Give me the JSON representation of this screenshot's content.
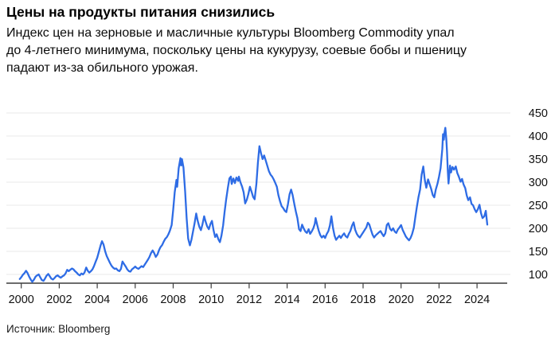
{
  "header": {
    "title": "Цены на продукты питания снизились",
    "subtitle": "Индекс цен на зерновые и масличные культуры Bloomberg Commodity упал до 4-летнего минимума, поскольку цены на кукурузу, соевые бобы и пшеницу падают из-за обильного урожая.",
    "subtitle_lines": [
      "Индекс цен на зерновые и масличные культуры Bloomberg Commodity упал",
      "до 4-летнего минимума, поскольку цены на кукурузу, соевые бобы и пшеницу",
      "падают из-за обильного урожая."
    ]
  },
  "footer": {
    "source_label": "Источник: Bloomberg"
  },
  "chart_data": {
    "type": "line",
    "title": "Цены на продукты питания снизились",
    "xlabel": "",
    "ylabel": "",
    "x_ticks": [
      2000,
      2002,
      2004,
      2006,
      2008,
      2010,
      2012,
      2014,
      2016,
      2018,
      2020,
      2022,
      2024
    ],
    "y_ticks": [
      100,
      150,
      200,
      250,
      300,
      350,
      400,
      450
    ],
    "x_range": [
      1999.9,
      2025.3
    ],
    "ylim": [
      80,
      460
    ],
    "y_axis_side": "right",
    "grid": true,
    "legend": "none",
    "line_color": "#2e6ce5",
    "grid_color": "#e8e8e8",
    "axis_color": "#3c3c3c",
    "label_color": "#111111",
    "points": [
      [
        1999.92,
        90
      ],
      [
        2000,
        94
      ],
      [
        2000.08,
        99
      ],
      [
        2000.17,
        103
      ],
      [
        2000.25,
        108
      ],
      [
        2000.33,
        103
      ],
      [
        2000.42,
        95
      ],
      [
        2000.5,
        89
      ],
      [
        2000.58,
        84
      ],
      [
        2000.67,
        89
      ],
      [
        2000.75,
        95
      ],
      [
        2000.83,
        98
      ],
      [
        2000.92,
        100
      ],
      [
        2001,
        94
      ],
      [
        2001.08,
        88
      ],
      [
        2001.17,
        86
      ],
      [
        2001.25,
        91
      ],
      [
        2001.33,
        97
      ],
      [
        2001.42,
        101
      ],
      [
        2001.5,
        96
      ],
      [
        2001.58,
        91
      ],
      [
        2001.67,
        89
      ],
      [
        2001.75,
        92
      ],
      [
        2001.83,
        96
      ],
      [
        2001.92,
        98
      ],
      [
        2002,
        95
      ],
      [
        2002.08,
        93
      ],
      [
        2002.17,
        96
      ],
      [
        2002.25,
        98
      ],
      [
        2002.33,
        102
      ],
      [
        2002.42,
        110
      ],
      [
        2002.5,
        107
      ],
      [
        2002.58,
        110
      ],
      [
        2002.67,
        113
      ],
      [
        2002.75,
        111
      ],
      [
        2002.83,
        107
      ],
      [
        2002.92,
        104
      ],
      [
        2003,
        100
      ],
      [
        2003.08,
        98
      ],
      [
        2003.17,
        102
      ],
      [
        2003.25,
        100
      ],
      [
        2003.33,
        104
      ],
      [
        2003.42,
        115
      ],
      [
        2003.5,
        108
      ],
      [
        2003.58,
        104
      ],
      [
        2003.67,
        107
      ],
      [
        2003.75,
        111
      ],
      [
        2003.83,
        118
      ],
      [
        2003.92,
        128
      ],
      [
        2004,
        136
      ],
      [
        2004.08,
        148
      ],
      [
        2004.17,
        162
      ],
      [
        2004.25,
        172
      ],
      [
        2004.33,
        165
      ],
      [
        2004.42,
        150
      ],
      [
        2004.5,
        140
      ],
      [
        2004.58,
        133
      ],
      [
        2004.67,
        125
      ],
      [
        2004.75,
        119
      ],
      [
        2004.83,
        115
      ],
      [
        2004.92,
        112
      ],
      [
        2005,
        113
      ],
      [
        2005.08,
        109
      ],
      [
        2005.17,
        107
      ],
      [
        2005.25,
        112
      ],
      [
        2005.33,
        128
      ],
      [
        2005.42,
        122
      ],
      [
        2005.5,
        117
      ],
      [
        2005.58,
        111
      ],
      [
        2005.67,
        107
      ],
      [
        2005.75,
        106
      ],
      [
        2005.83,
        111
      ],
      [
        2005.92,
        114
      ],
      [
        2006,
        117
      ],
      [
        2006.08,
        114
      ],
      [
        2006.17,
        112
      ],
      [
        2006.25,
        115
      ],
      [
        2006.33,
        118
      ],
      [
        2006.42,
        116
      ],
      [
        2006.5,
        121
      ],
      [
        2006.58,
        126
      ],
      [
        2006.67,
        132
      ],
      [
        2006.75,
        138
      ],
      [
        2006.83,
        146
      ],
      [
        2006.92,
        152
      ],
      [
        2007,
        146
      ],
      [
        2007.08,
        138
      ],
      [
        2007.17,
        143
      ],
      [
        2007.25,
        152
      ],
      [
        2007.33,
        159
      ],
      [
        2007.42,
        164
      ],
      [
        2007.5,
        171
      ],
      [
        2007.58,
        177
      ],
      [
        2007.67,
        181
      ],
      [
        2007.75,
        187
      ],
      [
        2007.83,
        195
      ],
      [
        2007.92,
        207
      ],
      [
        2008,
        240
      ],
      [
        2008.08,
        278
      ],
      [
        2008.17,
        305
      ],
      [
        2008.21,
        290
      ],
      [
        2008.29,
        330
      ],
      [
        2008.38,
        352
      ],
      [
        2008.42,
        336
      ],
      [
        2008.46,
        350
      ],
      [
        2008.54,
        332
      ],
      [
        2008.63,
        280
      ],
      [
        2008.71,
        222
      ],
      [
        2008.79,
        178
      ],
      [
        2008.88,
        163
      ],
      [
        2008.96,
        175
      ],
      [
        2009.04,
        192
      ],
      [
        2009.13,
        212
      ],
      [
        2009.21,
        232
      ],
      [
        2009.29,
        216
      ],
      [
        2009.38,
        203
      ],
      [
        2009.46,
        196
      ],
      [
        2009.54,
        208
      ],
      [
        2009.63,
        226
      ],
      [
        2009.71,
        214
      ],
      [
        2009.79,
        204
      ],
      [
        2009.88,
        198
      ],
      [
        2009.96,
        209
      ],
      [
        2010.04,
        216
      ],
      [
        2010.13,
        195
      ],
      [
        2010.21,
        181
      ],
      [
        2010.29,
        187
      ],
      [
        2010.38,
        176
      ],
      [
        2010.46,
        170
      ],
      [
        2010.54,
        184
      ],
      [
        2010.63,
        206
      ],
      [
        2010.71,
        236
      ],
      [
        2010.79,
        262
      ],
      [
        2010.88,
        288
      ],
      [
        2010.96,
        308
      ],
      [
        2011.04,
        312
      ],
      [
        2011.08,
        296
      ],
      [
        2011.17,
        308
      ],
      [
        2011.25,
        298
      ],
      [
        2011.33,
        310
      ],
      [
        2011.42,
        303
      ],
      [
        2011.46,
        312
      ],
      [
        2011.54,
        300
      ],
      [
        2011.63,
        290
      ],
      [
        2011.71,
        278
      ],
      [
        2011.79,
        254
      ],
      [
        2011.88,
        262
      ],
      [
        2011.96,
        274
      ],
      [
        2012.04,
        290
      ],
      [
        2012.13,
        279
      ],
      [
        2012.21,
        268
      ],
      [
        2012.29,
        263
      ],
      [
        2012.38,
        296
      ],
      [
        2012.46,
        342
      ],
      [
        2012.54,
        378
      ],
      [
        2012.63,
        362
      ],
      [
        2012.71,
        350
      ],
      [
        2012.79,
        358
      ],
      [
        2012.88,
        346
      ],
      [
        2012.96,
        335
      ],
      [
        2013.04,
        324
      ],
      [
        2013.13,
        316
      ],
      [
        2013.21,
        312
      ],
      [
        2013.29,
        306
      ],
      [
        2013.38,
        298
      ],
      [
        2013.46,
        290
      ],
      [
        2013.54,
        272
      ],
      [
        2013.63,
        258
      ],
      [
        2013.71,
        248
      ],
      [
        2013.79,
        244
      ],
      [
        2013.88,
        238
      ],
      [
        2013.96,
        235
      ],
      [
        2014.04,
        252
      ],
      [
        2014.13,
        274
      ],
      [
        2014.21,
        284
      ],
      [
        2014.29,
        272
      ],
      [
        2014.38,
        252
      ],
      [
        2014.46,
        236
      ],
      [
        2014.54,
        222
      ],
      [
        2014.63,
        198
      ],
      [
        2014.71,
        194
      ],
      [
        2014.79,
        208
      ],
      [
        2014.88,
        199
      ],
      [
        2014.96,
        193
      ],
      [
        2015.04,
        190
      ],
      [
        2015.13,
        198
      ],
      [
        2015.21,
        188
      ],
      [
        2015.29,
        193
      ],
      [
        2015.38,
        200
      ],
      [
        2015.46,
        210
      ],
      [
        2015.5,
        222
      ],
      [
        2015.58,
        208
      ],
      [
        2015.67,
        194
      ],
      [
        2015.75,
        185
      ],
      [
        2015.83,
        180
      ],
      [
        2015.92,
        184
      ],
      [
        2016,
        179
      ],
      [
        2016.08,
        187
      ],
      [
        2016.17,
        194
      ],
      [
        2016.25,
        206
      ],
      [
        2016.33,
        226
      ],
      [
        2016.42,
        200
      ],
      [
        2016.5,
        184
      ],
      [
        2016.58,
        175
      ],
      [
        2016.67,
        180
      ],
      [
        2016.75,
        184
      ],
      [
        2016.83,
        179
      ],
      [
        2016.92,
        185
      ],
      [
        2017,
        189
      ],
      [
        2017.08,
        183
      ],
      [
        2017.17,
        180
      ],
      [
        2017.25,
        188
      ],
      [
        2017.33,
        194
      ],
      [
        2017.42,
        206
      ],
      [
        2017.5,
        213
      ],
      [
        2017.58,
        197
      ],
      [
        2017.67,
        188
      ],
      [
        2017.75,
        183
      ],
      [
        2017.83,
        180
      ],
      [
        2017.92,
        186
      ],
      [
        2018,
        191
      ],
      [
        2018.08,
        196
      ],
      [
        2018.17,
        202
      ],
      [
        2018.25,
        212
      ],
      [
        2018.33,
        208
      ],
      [
        2018.42,
        196
      ],
      [
        2018.5,
        186
      ],
      [
        2018.58,
        180
      ],
      [
        2018.67,
        185
      ],
      [
        2018.75,
        188
      ],
      [
        2018.83,
        191
      ],
      [
        2018.92,
        194
      ],
      [
        2019,
        188
      ],
      [
        2019.08,
        183
      ],
      [
        2019.17,
        189
      ],
      [
        2019.25,
        207
      ],
      [
        2019.33,
        211
      ],
      [
        2019.42,
        199
      ],
      [
        2019.5,
        195
      ],
      [
        2019.58,
        200
      ],
      [
        2019.67,
        193
      ],
      [
        2019.75,
        190
      ],
      [
        2019.83,
        197
      ],
      [
        2019.92,
        202
      ],
      [
        2020,
        207
      ],
      [
        2020.08,
        197
      ],
      [
        2020.17,
        189
      ],
      [
        2020.25,
        182
      ],
      [
        2020.33,
        178
      ],
      [
        2020.42,
        174
      ],
      [
        2020.5,
        179
      ],
      [
        2020.58,
        187
      ],
      [
        2020.67,
        201
      ],
      [
        2020.75,
        224
      ],
      [
        2020.83,
        246
      ],
      [
        2020.92,
        268
      ],
      [
        2021,
        284
      ],
      [
        2021.08,
        316
      ],
      [
        2021.17,
        334
      ],
      [
        2021.25,
        305
      ],
      [
        2021.33,
        288
      ],
      [
        2021.42,
        306
      ],
      [
        2021.5,
        296
      ],
      [
        2021.58,
        286
      ],
      [
        2021.67,
        272
      ],
      [
        2021.75,
        267
      ],
      [
        2021.83,
        284
      ],
      [
        2021.92,
        297
      ],
      [
        2022,
        312
      ],
      [
        2022.08,
        330
      ],
      [
        2022.17,
        372
      ],
      [
        2022.21,
        404
      ],
      [
        2022.25,
        392
      ],
      [
        2022.29,
        408
      ],
      [
        2022.33,
        418
      ],
      [
        2022.38,
        394
      ],
      [
        2022.42,
        366
      ],
      [
        2022.46,
        324
      ],
      [
        2022.5,
        297
      ],
      [
        2022.58,
        336
      ],
      [
        2022.63,
        321
      ],
      [
        2022.71,
        333
      ],
      [
        2022.79,
        327
      ],
      [
        2022.88,
        334
      ],
      [
        2022.96,
        320
      ],
      [
        2023.04,
        312
      ],
      [
        2023.13,
        301
      ],
      [
        2023.21,
        307
      ],
      [
        2023.29,
        295
      ],
      [
        2023.38,
        287
      ],
      [
        2023.46,
        271
      ],
      [
        2023.54,
        261
      ],
      [
        2023.63,
        267
      ],
      [
        2023.71,
        253
      ],
      [
        2023.79,
        250
      ],
      [
        2023.88,
        241
      ],
      [
        2023.96,
        235
      ],
      [
        2024.04,
        241
      ],
      [
        2024.13,
        251
      ],
      [
        2024.21,
        233
      ],
      [
        2024.29,
        222
      ],
      [
        2024.38,
        226
      ],
      [
        2024.46,
        238
      ],
      [
        2024.54,
        208
      ]
    ]
  }
}
